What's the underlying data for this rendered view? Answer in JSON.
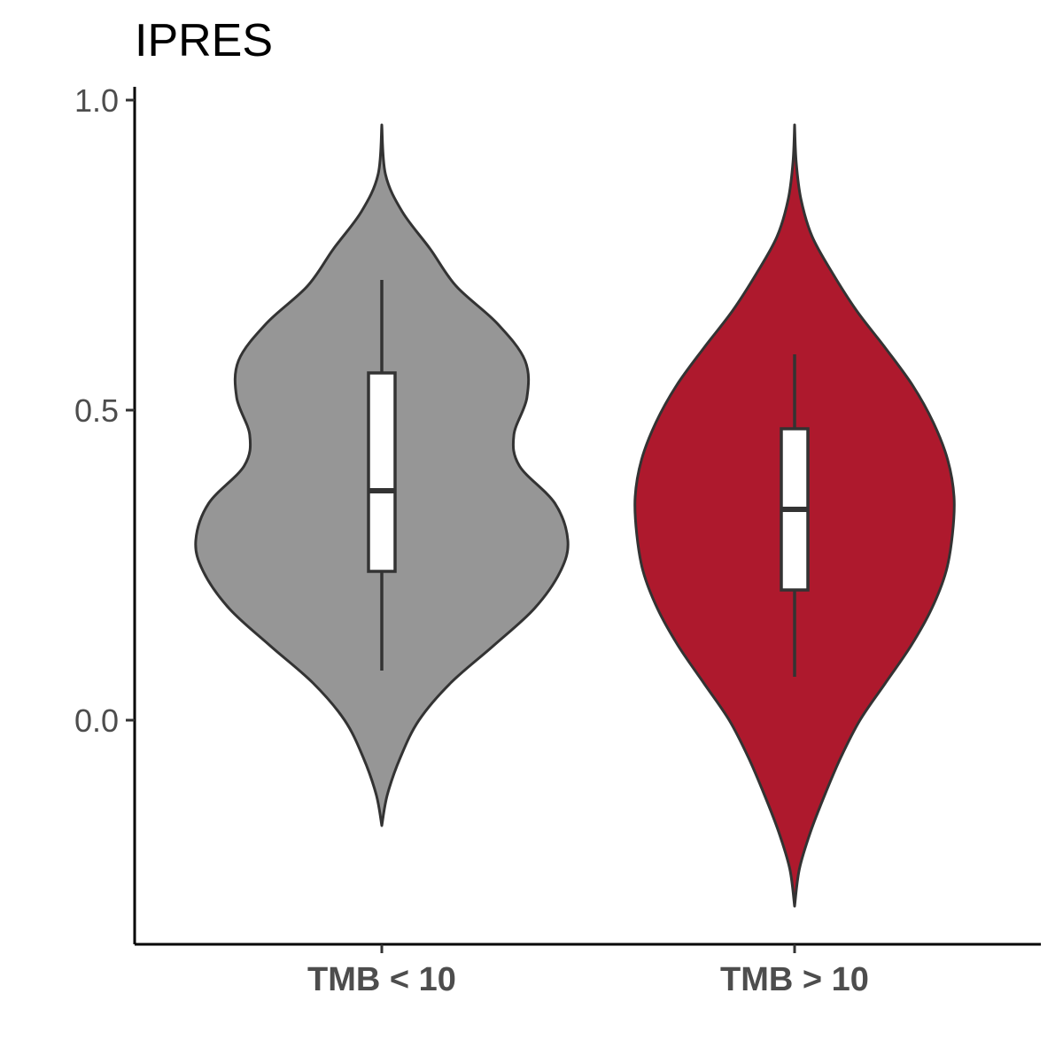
{
  "chart_data": {
    "type": "violin",
    "title": "IPRES",
    "xlabel": "",
    "ylabel": "",
    "ylim": [
      -0.36,
      1.02
    ],
    "y_ticks": [
      "0.0",
      "0.5",
      "1.0"
    ],
    "categories": [
      "TMB < 10",
      "TMB > 10"
    ],
    "colors": {
      "TMB < 10": "#969696",
      "TMB > 10": "#ae192d",
      "outline": "#333333",
      "box_fill": "#ffffff"
    },
    "legend": "none",
    "grid": false,
    "series": [
      {
        "category": "TMB < 10",
        "box": {
          "whisker_low": 0.08,
          "q1": 0.24,
          "median": 0.37,
          "q3": 0.56,
          "whisker_high": 0.71
        },
        "density_range": [
          -0.17,
          0.96
        ],
        "density_profile": [
          [
            -0.17,
            0.0
          ],
          [
            -0.12,
            0.03
          ],
          [
            -0.06,
            0.1
          ],
          [
            0.0,
            0.2
          ],
          [
            0.06,
            0.37
          ],
          [
            0.12,
            0.6
          ],
          [
            0.18,
            0.82
          ],
          [
            0.24,
            0.96
          ],
          [
            0.29,
            1.0
          ],
          [
            0.35,
            0.93
          ],
          [
            0.41,
            0.74
          ],
          [
            0.46,
            0.71
          ],
          [
            0.52,
            0.78
          ],
          [
            0.58,
            0.77
          ],
          [
            0.64,
            0.62
          ],
          [
            0.7,
            0.4
          ],
          [
            0.76,
            0.26
          ],
          [
            0.82,
            0.11
          ],
          [
            0.88,
            0.02
          ],
          [
            0.96,
            0.0
          ]
        ]
      },
      {
        "category": "TMB > 10",
        "box": {
          "whisker_low": 0.07,
          "q1": 0.21,
          "median": 0.34,
          "q3": 0.47,
          "whisker_high": 0.59
        },
        "density_range": [
          -0.3,
          0.96
        ],
        "density_profile": [
          [
            -0.3,
            0.0
          ],
          [
            -0.24,
            0.03
          ],
          [
            -0.18,
            0.1
          ],
          [
            -0.12,
            0.19
          ],
          [
            -0.06,
            0.29
          ],
          [
            0.0,
            0.41
          ],
          [
            0.06,
            0.57
          ],
          [
            0.12,
            0.73
          ],
          [
            0.18,
            0.86
          ],
          [
            0.24,
            0.95
          ],
          [
            0.3,
            0.99
          ],
          [
            0.36,
            1.0
          ],
          [
            0.42,
            0.96
          ],
          [
            0.48,
            0.87
          ],
          [
            0.54,
            0.74
          ],
          [
            0.6,
            0.57
          ],
          [
            0.66,
            0.39
          ],
          [
            0.72,
            0.24
          ],
          [
            0.78,
            0.11
          ],
          [
            0.84,
            0.04
          ],
          [
            0.9,
            0.01
          ],
          [
            0.96,
            0.0
          ]
        ]
      }
    ]
  }
}
